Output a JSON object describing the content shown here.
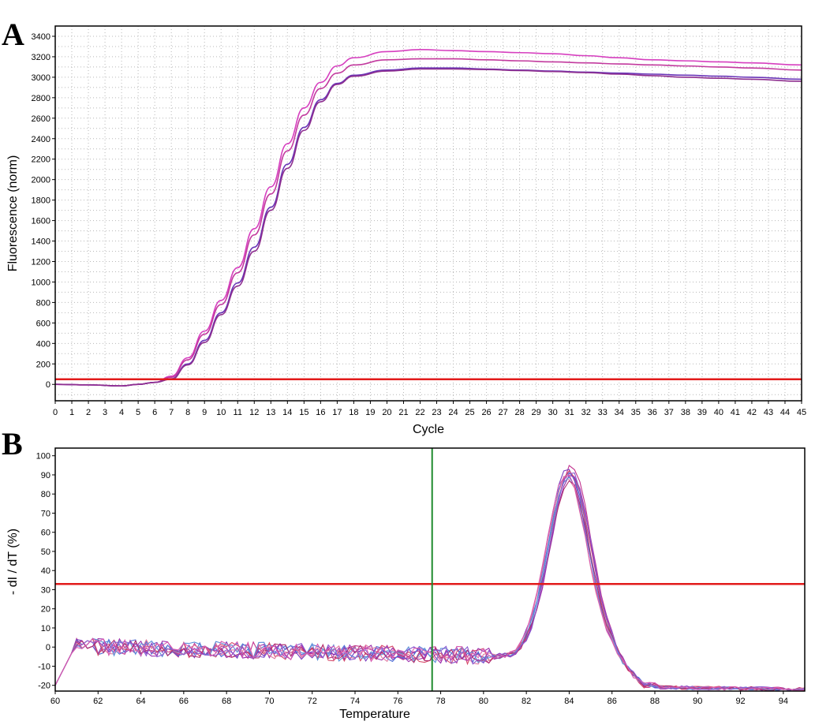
{
  "panels": {
    "a": "A",
    "b": "B"
  },
  "chart_data": [
    {
      "type": "line",
      "xlabel": "Cycle",
      "ylabel": "Fluorescence (norm)",
      "xlim": [
        0,
        45
      ],
      "ylim": [
        -160,
        3500
      ],
      "xticks": [
        0,
        1,
        2,
        3,
        4,
        5,
        6,
        7,
        8,
        9,
        10,
        11,
        12,
        13,
        14,
        15,
        16,
        17,
        18,
        19,
        20,
        21,
        22,
        23,
        24,
        25,
        26,
        27,
        28,
        29,
        30,
        31,
        32,
        33,
        34,
        35,
        36,
        37,
        38,
        39,
        40,
        41,
        42,
        43,
        44,
        45
      ],
      "yticks": [
        0,
        200,
        400,
        600,
        800,
        1000,
        1200,
        1400,
        1600,
        1800,
        2000,
        2200,
        2400,
        2600,
        2800,
        3000,
        3200,
        3400
      ],
      "grid": true,
      "threshold": {
        "y": 50,
        "color": "#e21b1b"
      },
      "series": [
        {
          "color": "#d63fbf",
          "x": [
            0,
            2,
            4,
            5,
            6,
            7,
            8,
            9,
            10,
            11,
            12,
            13,
            14,
            15,
            16,
            17,
            18,
            20,
            22,
            24,
            26,
            28,
            30,
            32,
            34,
            36,
            38,
            40,
            42,
            45
          ],
          "y": [
            0,
            -5,
            -15,
            0,
            20,
            80,
            260,
            520,
            820,
            1140,
            1520,
            1930,
            2350,
            2700,
            2950,
            3110,
            3190,
            3250,
            3270,
            3260,
            3250,
            3240,
            3230,
            3210,
            3190,
            3170,
            3160,
            3150,
            3140,
            3120
          ]
        },
        {
          "color": "#c23a9e",
          "x": [
            0,
            2,
            4,
            5,
            6,
            7,
            8,
            9,
            10,
            11,
            12,
            13,
            14,
            15,
            16,
            17,
            18,
            20,
            22,
            24,
            26,
            28,
            30,
            32,
            34,
            36,
            38,
            40,
            42,
            45
          ],
          "y": [
            0,
            -5,
            -15,
            0,
            20,
            70,
            240,
            490,
            780,
            1090,
            1460,
            1860,
            2280,
            2630,
            2890,
            3040,
            3120,
            3170,
            3180,
            3180,
            3170,
            3160,
            3150,
            3140,
            3130,
            3120,
            3110,
            3100,
            3090,
            3070
          ]
        },
        {
          "color": "#6a35b8",
          "x": [
            0,
            2,
            4,
            5,
            6,
            7,
            8,
            9,
            10,
            11,
            12,
            13,
            14,
            15,
            16,
            17,
            18,
            20,
            22,
            24,
            26,
            28,
            30,
            32,
            34,
            36,
            38,
            40,
            42,
            45
          ],
          "y": [
            0,
            -5,
            -15,
            0,
            20,
            55,
            200,
            430,
            700,
            990,
            1340,
            1730,
            2150,
            2510,
            2780,
            2940,
            3020,
            3070,
            3090,
            3090,
            3080,
            3070,
            3060,
            3050,
            3040,
            3030,
            3020,
            3010,
            3000,
            2980
          ]
        },
        {
          "color": "#8e2f8f",
          "x": [
            0,
            2,
            4,
            5,
            6,
            7,
            8,
            9,
            10,
            11,
            12,
            13,
            14,
            15,
            16,
            17,
            18,
            20,
            22,
            24,
            26,
            28,
            30,
            32,
            34,
            36,
            38,
            40,
            42,
            45
          ],
          "y": [
            0,
            -5,
            -15,
            0,
            20,
            50,
            190,
            410,
            680,
            960,
            1300,
            1700,
            2110,
            2480,
            2760,
            2930,
            3010,
            3060,
            3080,
            3080,
            3075,
            3065,
            3055,
            3045,
            3030,
            3015,
            3000,
            2990,
            2980,
            2960
          ]
        }
      ]
    },
    {
      "type": "line",
      "xlabel": "Temperature",
      "ylabel": "- dI / dT (%)",
      "xlim": [
        60,
        95
      ],
      "ylim": [
        -23,
        104
      ],
      "xticks": [
        60,
        62,
        64,
        66,
        68,
        70,
        72,
        74,
        76,
        78,
        80,
        82,
        84,
        86,
        88,
        90,
        92,
        94
      ],
      "yticks": [
        -20,
        -10,
        0,
        10,
        20,
        30,
        40,
        50,
        60,
        70,
        80,
        90,
        100
      ],
      "grid": false,
      "threshold": {
        "y": 33,
        "color": "#e21b1b"
      },
      "marker_line": {
        "x": 77.6,
        "color": "#1f8a2e"
      },
      "series_colors": [
        "#c2338f",
        "#7a3fbf",
        "#4f6fd6",
        "#d64a6a",
        "#9b2fae",
        "#e07aa0",
        "#5b8fd8",
        "#b03070",
        "#8a5ad0",
        "#d85ab0"
      ],
      "peak": {
        "x": 84.0,
        "heights": [
          99,
          98,
          97,
          96,
          95,
          94,
          93,
          92,
          97,
          95
        ]
      },
      "series": []
    }
  ]
}
